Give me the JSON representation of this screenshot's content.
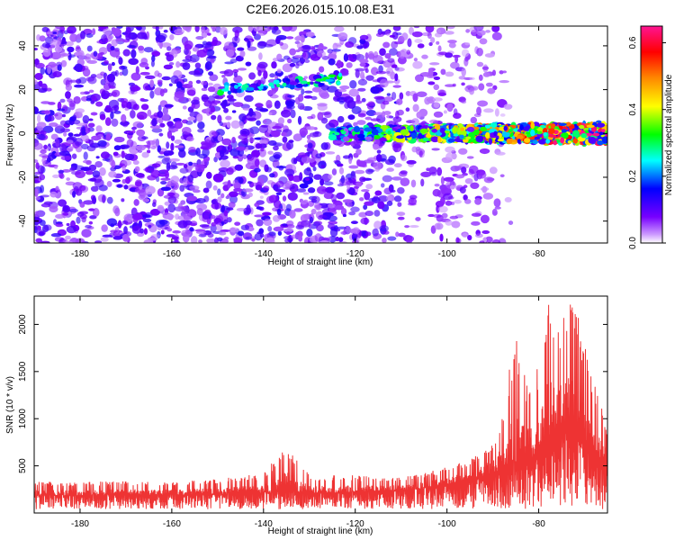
{
  "title": "C2E6.2026.015.10.08.E31",
  "chart_data": [
    {
      "type": "heatmap",
      "title": "C2E6.2026.015.10.08.E31",
      "xlabel": "Height of straight line (km)",
      "ylabel": "Frequency (Hz)",
      "xlim": [
        -190,
        -65
      ],
      "ylim": [
        -50,
        49
      ],
      "xticks": [
        -180,
        -160,
        -140,
        -120,
        -100,
        -80
      ],
      "xtick_labels": [
        "-180",
        "-160",
        "-140",
        "-120",
        "-100",
        "-80"
      ],
      "yticks": [
        -40,
        -20,
        0,
        20,
        40
      ],
      "ytick_labels": [
        "-40",
        "-20",
        "0",
        "20",
        "40"
      ],
      "colorbar": {
        "label": "Normalized spectral amplitude",
        "range": [
          0,
          0.65
        ],
        "ticks": [
          0.0,
          0.2,
          0.4,
          0.6
        ],
        "tick_labels": [
          "0.0",
          "0.2",
          "0.4",
          "0.6"
        ],
        "colors": [
          "#ffffff",
          "#cc99ff",
          "#7700ff",
          "#0000ff",
          "#00ffff",
          "#00ff00",
          "#ffff00",
          "#ff8800",
          "#ff0000",
          "#ff1493"
        ]
      },
      "features": [
        {
          "name": "broadband noise",
          "x_range": [
            -190,
            -95
          ],
          "freq_range": [
            -50,
            49
          ],
          "amplitude": 0.12
        },
        {
          "name": "signal band",
          "x_range": [
            -125,
            -65
          ],
          "freq_center": 0,
          "freq_halfwidth": 4,
          "amplitude_start": 0.3,
          "amplitude_end": 0.65
        },
        {
          "name": "spur",
          "x_range": [
            -150,
            -123
          ],
          "freq_center": 20,
          "freq_halfwidth": 2,
          "amplitude": 0.3
        }
      ]
    },
    {
      "type": "line",
      "xlabel": "Height of straight line (km)",
      "ylabel": "SNR (10 * v/v)",
      "xlim": [
        -190,
        -65
      ],
      "ylim": [
        0,
        2300
      ],
      "xticks": [
        -180,
        -160,
        -140,
        -120,
        -100,
        -80
      ],
      "xtick_labels": [
        "-180",
        "-160",
        "-140",
        "-120",
        "-100",
        "-80"
      ],
      "yticks": [
        500,
        1000,
        1500,
        2000
      ],
      "ytick_labels": [
        "500",
        "1000",
        "1500",
        "2000"
      ],
      "series": [
        {
          "name": "SNR",
          "color": "#ee3333",
          "x": [
            -190,
            -180,
            -170,
            -160,
            -150,
            -140,
            -135,
            -130,
            -120,
            -110,
            -105,
            -100,
            -95,
            -90,
            -88,
            -85,
            -82,
            -80,
            -78,
            -76,
            -74,
            -72,
            -70,
            -68,
            -66,
            -65
          ],
          "envelope_max": [
            330,
            330,
            340,
            330,
            360,
            420,
            740,
            400,
            400,
            380,
            420,
            500,
            560,
            780,
            1050,
            1950,
            1300,
            1600,
            2300,
            1900,
            2300,
            2250,
            1800,
            1400,
            1100,
            900
          ],
          "typical": [
            200,
            200,
            210,
            210,
            220,
            230,
            240,
            230,
            240,
            260,
            290,
            330,
            390,
            450,
            500,
            560,
            620,
            700,
            900,
            1000,
            1050,
            950,
            850,
            700,
            600,
            550
          ]
        }
      ]
    }
  ]
}
